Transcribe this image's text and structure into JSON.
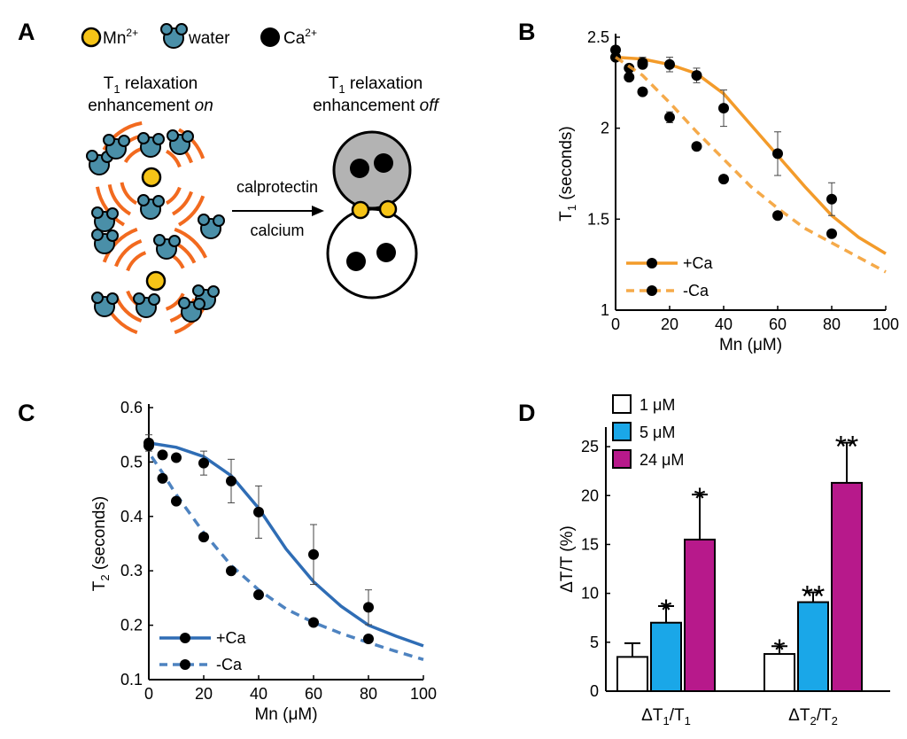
{
  "panel_labels": {
    "a": "A",
    "b": "B",
    "c": "C",
    "d": "D"
  },
  "schematic": {
    "legend": {
      "mn": "Mn",
      "mn_sup": "2+",
      "water": "water",
      "ca": "Ca",
      "ca_sup": "2+"
    },
    "left_title_1": "T",
    "left_title_1_sub": "1",
    "left_title_1_rest": " relaxation",
    "left_title_2": "enhancement ",
    "left_title_2_italic": "on",
    "right_title_1": "T",
    "right_title_1_sub": "1",
    "right_title_1_rest": " relaxation",
    "right_title_2": "enhancement ",
    "right_title_2_italic": "off",
    "arrow_top": "calprotectin",
    "arrow_bottom": "calcium",
    "colors": {
      "mn": "#f6c417",
      "water": "#4a8fa8",
      "ca": "#000000",
      "arcs": "#f26a1f",
      "protein": "#b3b3b3"
    }
  },
  "chart_data": [
    {
      "id": "B",
      "type": "line",
      "xlabel": "Mn (μM)",
      "ylabel": "T",
      "ylabel_sub": "1",
      "ylabel_rest": " (seconds)",
      "xlim": [
        0,
        100
      ],
      "ylim": [
        1,
        2.5
      ],
      "xticks": [
        "0",
        "20",
        "40",
        "60",
        "80",
        "100"
      ],
      "yticks": [
        "1",
        "1.5",
        "2",
        "2.5"
      ],
      "color": "#f39b2a",
      "series": [
        {
          "name": "+Ca",
          "style": "solid",
          "x": [
            0,
            0,
            5,
            10,
            10,
            20,
            30,
            40,
            60,
            80
          ],
          "y": [
            2.43,
            2.39,
            2.33,
            2.36,
            2.35,
            2.35,
            2.29,
            2.11,
            1.86,
            1.61
          ],
          "err": [
            0,
            0,
            0,
            0.03,
            0,
            0.04,
            0.04,
            0.1,
            0.12,
            0.09
          ],
          "fit_x": [
            0,
            10,
            20,
            30,
            40,
            50,
            60,
            70,
            80,
            90,
            100
          ],
          "fit_y": [
            2.39,
            2.38,
            2.35,
            2.3,
            2.19,
            2.02,
            1.85,
            1.68,
            1.52,
            1.4,
            1.31
          ]
        },
        {
          "name": "-Ca",
          "style": "dashed",
          "x": [
            5,
            10,
            20,
            30,
            40,
            60,
            80
          ],
          "y": [
            2.28,
            2.2,
            2.06,
            1.9,
            1.72,
            1.52,
            1.42
          ],
          "err": [
            0,
            0,
            0.03,
            0,
            0,
            0,
            0
          ],
          "fit_x": [
            0,
            10,
            20,
            30,
            40,
            50,
            60,
            70,
            80,
            90,
            100
          ],
          "fit_y": [
            2.39,
            2.29,
            2.14,
            1.98,
            1.83,
            1.68,
            1.56,
            1.45,
            1.37,
            1.29,
            1.21
          ]
        }
      ],
      "legend_position": "bottom-left"
    },
    {
      "id": "C",
      "type": "line",
      "xlabel": "Mn (μM)",
      "ylabel": "T",
      "ylabel_sub": "2",
      "ylabel_rest": " (seconds)",
      "xlim": [
        0,
        100
      ],
      "ylim": [
        0.1,
        0.6
      ],
      "xticks": [
        "0",
        "20",
        "40",
        "60",
        "80",
        "100"
      ],
      "yticks": [
        "0.1",
        "0.2",
        "0.3",
        "0.4",
        "0.5",
        "0.6"
      ],
      "color": "#2f6db5",
      "series": [
        {
          "name": "+Ca",
          "style": "solid",
          "x": [
            0,
            0,
            5,
            10,
            20,
            30,
            40,
            60,
            80
          ],
          "y": [
            0.535,
            0.53,
            0.513,
            0.508,
            0.498,
            0.465,
            0.408,
            0.33,
            0.233
          ],
          "err": [
            0.015,
            0,
            0,
            0,
            0.022,
            0.04,
            0.048,
            0.055,
            0.032
          ],
          "fit_x": [
            0,
            10,
            20,
            30,
            40,
            50,
            60,
            70,
            80,
            90,
            100
          ],
          "fit_y": [
            0.535,
            0.527,
            0.51,
            0.475,
            0.415,
            0.34,
            0.28,
            0.235,
            0.2,
            0.18,
            0.162
          ]
        },
        {
          "name": "-Ca",
          "style": "dashed",
          "x": [
            5,
            10,
            20,
            30,
            40,
            60,
            80
          ],
          "y": [
            0.47,
            0.428,
            0.362,
            0.3,
            0.256,
            0.205,
            0.175
          ],
          "err": [
            0,
            0,
            0,
            0,
            0,
            0,
            0
          ],
          "fit_x": [
            1,
            5,
            10,
            20,
            30,
            40,
            50,
            60,
            70,
            80,
            90,
            100
          ],
          "fit_y": [
            0.51,
            0.48,
            0.44,
            0.37,
            0.31,
            0.265,
            0.23,
            0.205,
            0.185,
            0.168,
            0.152,
            0.137
          ]
        }
      ],
      "legend_position": "bottom-left"
    },
    {
      "id": "D",
      "type": "bar",
      "ylabel": "ΔT/T (%)",
      "ylim": [
        0,
        27
      ],
      "yticks": [
        "0",
        "5",
        "10",
        "15",
        "20",
        "25"
      ],
      "categories": [
        "ΔT1/T1",
        "ΔT2/T2"
      ],
      "category_labels": [
        {
          "a": "ΔT",
          "a_sub": "1",
          "b": "/T",
          "b_sub": "1"
        },
        {
          "a": "ΔT",
          "a_sub": "2",
          "b": "/T",
          "b_sub": "2"
        }
      ],
      "series": [
        {
          "name": "1 μM",
          "color": "#ffffff",
          "values": [
            3.5,
            3.8
          ],
          "err": [
            1.4,
            0.8
          ],
          "stars": [
            "",
            "*"
          ]
        },
        {
          "name": "5 μM",
          "color": "#1aa7e8",
          "values": [
            7.0,
            9.1
          ],
          "err": [
            1.7,
            1.0
          ],
          "stars": [
            "*",
            "**"
          ]
        },
        {
          "name": "24 μM",
          "color": "#b7198b",
          "values": [
            15.5,
            21.3
          ],
          "err": [
            4.6,
            4.1
          ],
          "stars": [
            "*",
            "**"
          ]
        }
      ],
      "legend_position": "top-left"
    }
  ]
}
